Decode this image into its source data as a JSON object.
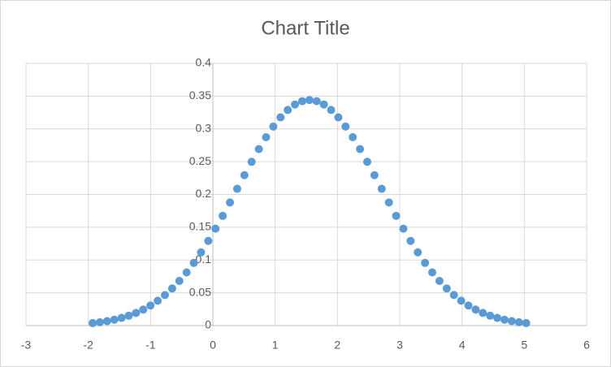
{
  "chart_data": {
    "type": "scatter",
    "title": "Chart Title",
    "series": [
      {
        "color": "#5b9bd5",
        "x": [
          -1.93,
          -1.814,
          -1.698,
          -1.582,
          -1.466,
          -1.35,
          -1.234,
          -1.118,
          -1.002,
          -0.886,
          -0.77,
          -0.654,
          -0.538,
          -0.422,
          -0.306,
          -0.19,
          -0.074,
          0.042,
          0.158,
          0.274,
          0.39,
          0.506,
          0.622,
          0.738,
          0.854,
          0.97,
          1.086,
          1.202,
          1.318,
          1.434,
          1.55,
          1.666,
          1.782,
          1.898,
          2.014,
          2.13,
          2.246,
          2.362,
          2.478,
          2.594,
          2.71,
          2.826,
          2.942,
          3.058,
          3.174,
          3.29,
          3.406,
          3.522,
          3.638,
          3.754,
          3.87,
          3.986,
          4.102,
          4.218,
          4.334,
          4.45,
          4.566,
          4.682,
          4.798,
          4.914,
          5.03
        ],
        "values": [
          0.0038,
          0.0051,
          0.0068,
          0.009,
          0.0117,
          0.0151,
          0.0193,
          0.0244,
          0.0306,
          0.0379,
          0.0466,
          0.0566,
          0.0681,
          0.0811,
          0.0956,
          0.1117,
          0.1291,
          0.1478,
          0.1674,
          0.1878,
          0.2086,
          0.2294,
          0.2498,
          0.2692,
          0.2873,
          0.3036,
          0.3176,
          0.3289,
          0.3372,
          0.3423,
          0.344,
          0.3423,
          0.3372,
          0.3289,
          0.3176,
          0.3036,
          0.2873,
          0.2692,
          0.2498,
          0.2294,
          0.2086,
          0.1878,
          0.1674,
          0.1478,
          0.1291,
          0.1117,
          0.0956,
          0.0811,
          0.0681,
          0.0566,
          0.0466,
          0.0379,
          0.0306,
          0.0244,
          0.0193,
          0.0151,
          0.0117,
          0.009,
          0.0068,
          0.0051,
          0.0038
        ]
      }
    ],
    "xlim": [
      -3,
      6
    ],
    "xticks": [
      -3,
      -2,
      -1,
      0,
      1,
      2,
      3,
      4,
      5,
      6
    ],
    "ylim": [
      0,
      0.4
    ],
    "yticks": [
      0,
      0.05,
      0.1,
      0.15,
      0.2,
      0.25,
      0.3,
      0.35,
      0.4
    ],
    "grid": true
  }
}
